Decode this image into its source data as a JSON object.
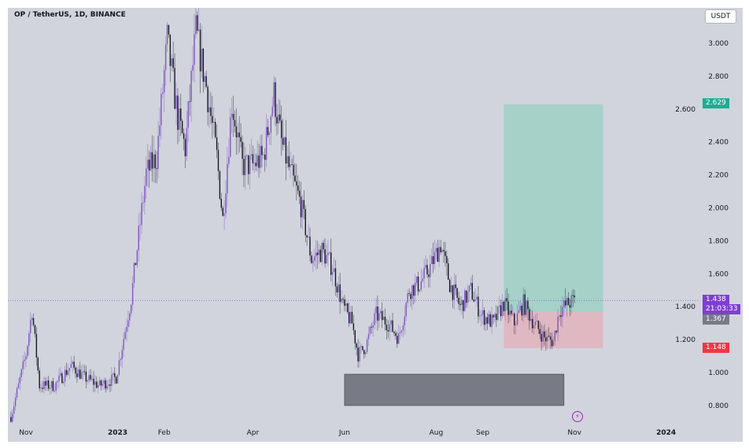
{
  "header": {
    "title": "OP / TetherUS, 1D, BINANCE",
    "currency_button": "USDT"
  },
  "colors": {
    "up": "#7e57c2",
    "down": "#131722",
    "background": "#d1d4dc",
    "target_zone": "#9fd0c6",
    "stop_zone": "#e3b3bd",
    "demand_box": "#787b86"
  },
  "price_labels": {
    "current": "1.438",
    "countdown": "21:03:33",
    "entry": "1.367",
    "target": "2.629",
    "stop": "1.148"
  },
  "chart_data": {
    "type": "candlestick",
    "title": "OP / TetherUS, 1D, BINANCE",
    "ylim": [
      0.72,
      3.24
    ],
    "y_ticks": [
      "3.000",
      "2.800",
      "2.600",
      "2.400",
      "2.200",
      "2.000",
      "1.800",
      "1.600",
      "1.400",
      "1.200",
      "1.000",
      "0.800"
    ],
    "x_ticks": [
      {
        "label": "Nov",
        "date": "2022-11-01",
        "bold": false
      },
      {
        "label": "2023",
        "date": "2023-01-01",
        "bold": true
      },
      {
        "label": "Feb",
        "date": "2023-02-01",
        "bold": false
      },
      {
        "label": "Apr",
        "date": "2023-04-01",
        "bold": false
      },
      {
        "label": "Jun",
        "date": "2023-06-01",
        "bold": false
      },
      {
        "label": "Aug",
        "date": "2023-08-01",
        "bold": false
      },
      {
        "label": "Sep",
        "date": "2023-09-01",
        "bold": false
      },
      {
        "label": "Nov",
        "date": "2023-11-01",
        "bold": false
      },
      {
        "label": "2024",
        "date": "2024-01-01",
        "bold": true
      }
    ],
    "price_path": [
      [
        "2022-10-22",
        0.73
      ],
      [
        "2022-11-01",
        1.11
      ],
      [
        "2022-11-05",
        1.38
      ],
      [
        "2022-11-10",
        0.92
      ],
      [
        "2022-11-20",
        0.92
      ],
      [
        "2022-12-01",
        1.04
      ],
      [
        "2022-12-10",
        0.97
      ],
      [
        "2022-12-20",
        0.92
      ],
      [
        "2022-12-31",
        0.97
      ],
      [
        "2023-01-10",
        1.45
      ],
      [
        "2023-01-20",
        2.21
      ],
      [
        "2023-01-27",
        2.31
      ],
      [
        "2023-02-03",
        3.02
      ],
      [
        "2023-02-10",
        2.55
      ],
      [
        "2023-02-15",
        2.36
      ],
      [
        "2023-02-22",
        3.07
      ],
      [
        "2023-03-01",
        2.74
      ],
      [
        "2023-03-08",
        2.31
      ],
      [
        "2023-03-12",
        1.93
      ],
      [
        "2023-03-18",
        2.64
      ],
      [
        "2023-03-25",
        2.26
      ],
      [
        "2023-04-01",
        2.26
      ],
      [
        "2023-04-08",
        2.31
      ],
      [
        "2023-04-15",
        2.69
      ],
      [
        "2023-04-20",
        2.4
      ],
      [
        "2023-04-26",
        2.21
      ],
      [
        "2023-05-03",
        2.02
      ],
      [
        "2023-05-10",
        1.69
      ],
      [
        "2023-05-17",
        1.74
      ],
      [
        "2023-05-24",
        1.64
      ],
      [
        "2023-05-31",
        1.4
      ],
      [
        "2023-06-06",
        1.3
      ],
      [
        "2023-06-10",
        1.11
      ],
      [
        "2023-06-15",
        1.16
      ],
      [
        "2023-06-22",
        1.35
      ],
      [
        "2023-06-30",
        1.3
      ],
      [
        "2023-07-07",
        1.21
      ],
      [
        "2023-07-14",
        1.5
      ],
      [
        "2023-07-21",
        1.54
      ],
      [
        "2023-07-28",
        1.64
      ],
      [
        "2023-08-04",
        1.78
      ],
      [
        "2023-08-10",
        1.54
      ],
      [
        "2023-08-17",
        1.4
      ],
      [
        "2023-08-24",
        1.5
      ],
      [
        "2023-08-31",
        1.35
      ],
      [
        "2023-09-08",
        1.3
      ],
      [
        "2023-09-15",
        1.42
      ],
      [
        "2023-09-22",
        1.3
      ],
      [
        "2023-09-28",
        1.42
      ],
      [
        "2023-10-05",
        1.3
      ],
      [
        "2023-10-12",
        1.21
      ],
      [
        "2023-10-18",
        1.19
      ],
      [
        "2023-10-22",
        1.38
      ],
      [
        "2023-10-28",
        1.42
      ],
      [
        "2023-11-01",
        1.438
      ]
    ],
    "long_position": {
      "start": "2023-09-15",
      "end": "2023-11-20",
      "entry": 1.367,
      "target": 2.629,
      "stop": 1.148
    },
    "demand_zone": {
      "start": "2023-06-01",
      "end": "2023-10-25",
      "top": 0.99,
      "bottom": 0.8
    },
    "current_price": 1.438
  }
}
